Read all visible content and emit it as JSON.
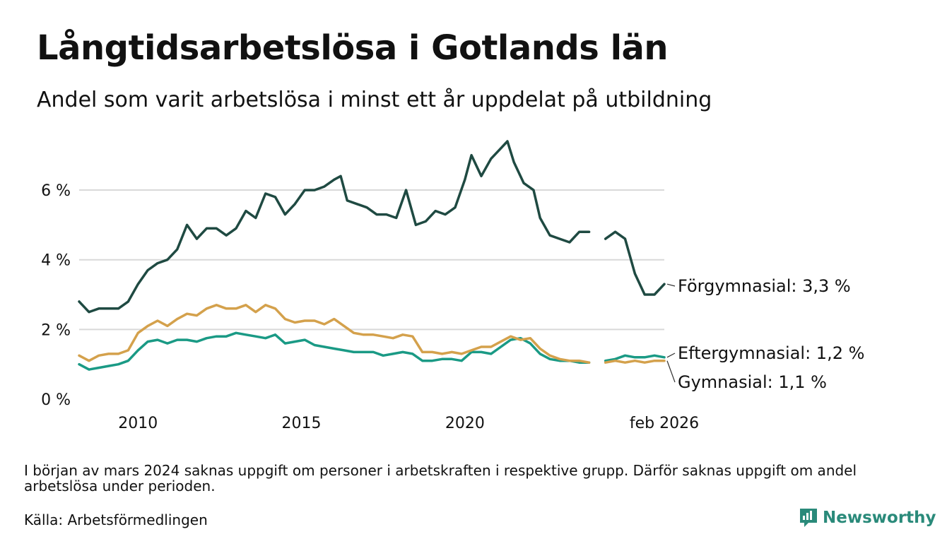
{
  "title": "Långtidsarbetslösa i Gotlands län",
  "subtitle": "Andel som varit arbetslösa i minst ett år uppdelat på utbildning",
  "note": "I början av mars 2024 saknas uppgift om personer i arbetskraften i respektive grupp. Därför saknas uppgift om andel arbetslösa under perioden.",
  "source": "Källa: Arbetsförmedlingen",
  "brand": "Newsworthy",
  "colors": {
    "forgym": "#1f4a42",
    "eftergym": "#1a9a85",
    "gym": "#d4a14c",
    "grid": "#d9d9d9"
  },
  "chart_data": {
    "type": "line",
    "title": "Långtidsarbetslösa i Gotlands län",
    "xlabel": "",
    "ylabel": "",
    "xlim": [
      2008.2,
      2026.1
    ],
    "ylim": [
      0,
      7.4
    ],
    "x_ticks": [
      {
        "value": 2010,
        "label": "2010"
      },
      {
        "value": 2015,
        "label": "2015"
      },
      {
        "value": 2020,
        "label": "2020"
      },
      {
        "value": 2026.1,
        "label": "feb 2026"
      }
    ],
    "y_ticks": [
      {
        "value": 0,
        "label": "0 %"
      },
      {
        "value": 2,
        "label": "2 %"
      },
      {
        "value": 4,
        "label": "4 %"
      },
      {
        "value": 6,
        "label": "6 %"
      }
    ],
    "grid": true,
    "gap": [
      2023.9,
      2024.3
    ],
    "series": [
      {
        "name": "Förgymnasial",
        "end_label": "Förgymnasial: 3,3 %",
        "color": "#1f4a42",
        "points": [
          [
            2008.2,
            2.8
          ],
          [
            2008.5,
            2.5
          ],
          [
            2008.8,
            2.6
          ],
          [
            2009.1,
            2.6
          ],
          [
            2009.4,
            2.6
          ],
          [
            2009.7,
            2.8
          ],
          [
            2010.0,
            3.3
          ],
          [
            2010.3,
            3.7
          ],
          [
            2010.6,
            3.9
          ],
          [
            2010.9,
            4.0
          ],
          [
            2011.2,
            4.3
          ],
          [
            2011.5,
            5.0
          ],
          [
            2011.8,
            4.6
          ],
          [
            2012.1,
            4.9
          ],
          [
            2012.4,
            4.9
          ],
          [
            2012.7,
            4.7
          ],
          [
            2013.0,
            4.9
          ],
          [
            2013.3,
            5.4
          ],
          [
            2013.6,
            5.2
          ],
          [
            2013.9,
            5.9
          ],
          [
            2014.2,
            5.8
          ],
          [
            2014.5,
            5.3
          ],
          [
            2014.8,
            5.6
          ],
          [
            2015.1,
            6.0
          ],
          [
            2015.4,
            6.0
          ],
          [
            2015.7,
            6.1
          ],
          [
            2016.0,
            6.3
          ],
          [
            2016.2,
            6.4
          ],
          [
            2016.4,
            5.7
          ],
          [
            2016.7,
            5.6
          ],
          [
            2017.0,
            5.5
          ],
          [
            2017.3,
            5.3
          ],
          [
            2017.6,
            5.3
          ],
          [
            2017.9,
            5.2
          ],
          [
            2018.2,
            6.0
          ],
          [
            2018.5,
            5.0
          ],
          [
            2018.8,
            5.1
          ],
          [
            2019.1,
            5.4
          ],
          [
            2019.4,
            5.3
          ],
          [
            2019.7,
            5.5
          ],
          [
            2020.0,
            6.3
          ],
          [
            2020.2,
            7.0
          ],
          [
            2020.5,
            6.4
          ],
          [
            2020.8,
            6.9
          ],
          [
            2021.1,
            7.2
          ],
          [
            2021.3,
            7.4
          ],
          [
            2021.5,
            6.8
          ],
          [
            2021.8,
            6.2
          ],
          [
            2022.1,
            6.0
          ],
          [
            2022.3,
            5.2
          ],
          [
            2022.6,
            4.7
          ],
          [
            2022.9,
            4.6
          ],
          [
            2023.2,
            4.5
          ],
          [
            2023.5,
            4.8
          ],
          [
            2023.8,
            4.8
          ],
          [
            2024.3,
            4.6
          ],
          [
            2024.6,
            4.8
          ],
          [
            2024.9,
            4.6
          ],
          [
            2025.2,
            3.6
          ],
          [
            2025.5,
            3.0
          ],
          [
            2025.8,
            3.0
          ],
          [
            2026.1,
            3.3
          ]
        ]
      },
      {
        "name": "Eftergymnasial",
        "end_label": "Eftergymnasial: 1,2 %",
        "color": "#1a9a85",
        "points": [
          [
            2008.2,
            1.0
          ],
          [
            2008.5,
            0.85
          ],
          [
            2008.8,
            0.9
          ],
          [
            2009.1,
            0.95
          ],
          [
            2009.4,
            1.0
          ],
          [
            2009.7,
            1.1
          ],
          [
            2010.0,
            1.4
          ],
          [
            2010.3,
            1.65
          ],
          [
            2010.6,
            1.7
          ],
          [
            2010.9,
            1.6
          ],
          [
            2011.2,
            1.7
          ],
          [
            2011.5,
            1.7
          ],
          [
            2011.8,
            1.65
          ],
          [
            2012.1,
            1.75
          ],
          [
            2012.4,
            1.8
          ],
          [
            2012.7,
            1.8
          ],
          [
            2013.0,
            1.9
          ],
          [
            2013.3,
            1.85
          ],
          [
            2013.6,
            1.8
          ],
          [
            2013.9,
            1.75
          ],
          [
            2014.2,
            1.85
          ],
          [
            2014.5,
            1.6
          ],
          [
            2014.8,
            1.65
          ],
          [
            2015.1,
            1.7
          ],
          [
            2015.4,
            1.55
          ],
          [
            2015.7,
            1.5
          ],
          [
            2016.0,
            1.45
          ],
          [
            2016.3,
            1.4
          ],
          [
            2016.6,
            1.35
          ],
          [
            2016.9,
            1.35
          ],
          [
            2017.2,
            1.35
          ],
          [
            2017.5,
            1.25
          ],
          [
            2017.8,
            1.3
          ],
          [
            2018.1,
            1.35
          ],
          [
            2018.4,
            1.3
          ],
          [
            2018.7,
            1.1
          ],
          [
            2019.0,
            1.1
          ],
          [
            2019.3,
            1.15
          ],
          [
            2019.6,
            1.15
          ],
          [
            2019.9,
            1.1
          ],
          [
            2020.2,
            1.35
          ],
          [
            2020.5,
            1.35
          ],
          [
            2020.8,
            1.3
          ],
          [
            2021.1,
            1.5
          ],
          [
            2021.4,
            1.7
          ],
          [
            2021.7,
            1.75
          ],
          [
            2022.0,
            1.6
          ],
          [
            2022.3,
            1.3
          ],
          [
            2022.6,
            1.15
          ],
          [
            2022.9,
            1.1
          ],
          [
            2023.2,
            1.1
          ],
          [
            2023.5,
            1.05
          ],
          [
            2023.8,
            1.05
          ],
          [
            2024.3,
            1.1
          ],
          [
            2024.6,
            1.15
          ],
          [
            2024.9,
            1.25
          ],
          [
            2025.2,
            1.2
          ],
          [
            2025.5,
            1.2
          ],
          [
            2025.8,
            1.25
          ],
          [
            2026.1,
            1.2
          ]
        ]
      },
      {
        "name": "Gymnasial",
        "end_label": "Gymnasial: 1,1 %",
        "color": "#d4a14c",
        "points": [
          [
            2008.2,
            1.25
          ],
          [
            2008.5,
            1.1
          ],
          [
            2008.8,
            1.25
          ],
          [
            2009.1,
            1.3
          ],
          [
            2009.4,
            1.3
          ],
          [
            2009.7,
            1.4
          ],
          [
            2010.0,
            1.9
          ],
          [
            2010.3,
            2.1
          ],
          [
            2010.6,
            2.25
          ],
          [
            2010.9,
            2.1
          ],
          [
            2011.2,
            2.3
          ],
          [
            2011.5,
            2.45
          ],
          [
            2011.8,
            2.4
          ],
          [
            2012.1,
            2.6
          ],
          [
            2012.4,
            2.7
          ],
          [
            2012.7,
            2.6
          ],
          [
            2013.0,
            2.6
          ],
          [
            2013.3,
            2.7
          ],
          [
            2013.6,
            2.5
          ],
          [
            2013.9,
            2.7
          ],
          [
            2014.2,
            2.6
          ],
          [
            2014.5,
            2.3
          ],
          [
            2014.8,
            2.2
          ],
          [
            2015.1,
            2.25
          ],
          [
            2015.4,
            2.25
          ],
          [
            2015.7,
            2.15
          ],
          [
            2016.0,
            2.3
          ],
          [
            2016.3,
            2.1
          ],
          [
            2016.6,
            1.9
          ],
          [
            2016.9,
            1.85
          ],
          [
            2017.2,
            1.85
          ],
          [
            2017.5,
            1.8
          ],
          [
            2017.8,
            1.75
          ],
          [
            2018.1,
            1.85
          ],
          [
            2018.4,
            1.8
          ],
          [
            2018.7,
            1.35
          ],
          [
            2019.0,
            1.35
          ],
          [
            2019.3,
            1.3
          ],
          [
            2019.6,
            1.35
          ],
          [
            2019.9,
            1.3
          ],
          [
            2020.2,
            1.4
          ],
          [
            2020.5,
            1.5
          ],
          [
            2020.8,
            1.5
          ],
          [
            2021.1,
            1.65
          ],
          [
            2021.4,
            1.8
          ],
          [
            2021.7,
            1.7
          ],
          [
            2022.0,
            1.75
          ],
          [
            2022.3,
            1.45
          ],
          [
            2022.6,
            1.25
          ],
          [
            2022.9,
            1.15
          ],
          [
            2023.2,
            1.1
          ],
          [
            2023.5,
            1.1
          ],
          [
            2023.8,
            1.05
          ],
          [
            2024.3,
            1.05
          ],
          [
            2024.6,
            1.1
          ],
          [
            2024.9,
            1.05
          ],
          [
            2025.2,
            1.1
          ],
          [
            2025.5,
            1.05
          ],
          [
            2025.8,
            1.1
          ],
          [
            2026.1,
            1.1
          ]
        ]
      }
    ]
  }
}
